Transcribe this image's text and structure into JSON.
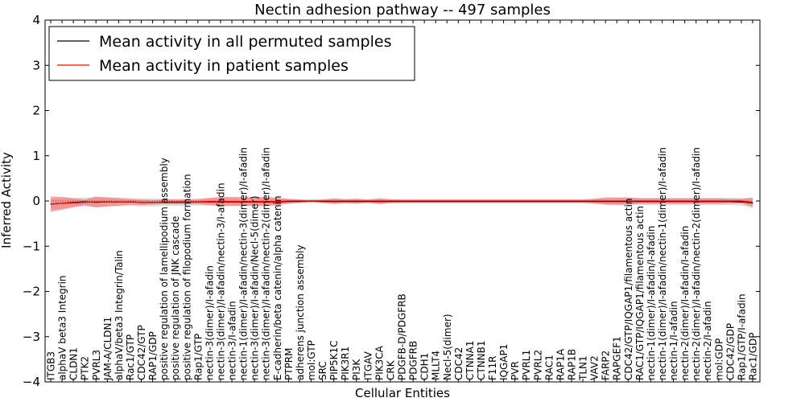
{
  "chart_data": {
    "type": "line",
    "title": "Nectin adhesion pathway -- 497 samples",
    "xlabel": "Cellular Entities",
    "ylabel": "Inferred Activity",
    "ylim": [
      -4,
      4
    ],
    "yticks": [
      "4",
      "3",
      "2",
      "1",
      "0",
      "−1",
      "−2",
      "−3",
      "−4"
    ],
    "ytick_values": [
      4,
      3,
      2,
      1,
      0,
      -1,
      -2,
      -3,
      -4
    ],
    "grid": false,
    "legend_placement": "top-left",
    "categories": [
      "ITGB3",
      "alphaV beta3 Integrin",
      "CLDN1",
      "PTK2",
      "PVRL3",
      "JAM-A/CLDN1",
      "alphaV/beta3 Integrin/Talin",
      "Rac1/GTP",
      "CDC42/GTP",
      "RAP1/GDP",
      "positive regulation of lamellipodium assembly",
      "positive regulation of JNK cascade",
      "positive regulation of filopodium formation",
      "Rap1/GTP",
      "nectin-3(dimer)/I-afadin",
      "nectin-3(dimer)/I-afadin/nectin-3/I-afadin",
      "nectin-3/I-afadin",
      "nectin-1(dimer)/I-afadin/nectin-3(dimer)/I-afadin",
      "nectin-3(dimer)/I-afadin/Necl-5(dimer)",
      "nectin-3(dimer)/I-afadin/nectin-2(dimer)/I-afadin",
      "E-cadherin/beta catenin/alpha catenin",
      "PTPRM",
      "adherens junction assembly",
      "mol:GTP",
      "SRC",
      "PIP5K1C",
      "PIK3R1",
      "PI3K",
      "ITGAV",
      "PIK3CA",
      "CRK",
      "PDGFB-D/PDGFRB",
      "PDGFRB",
      "CDH1",
      "MLLT4",
      "Necl-5(dimer)",
      "CDC42",
      "CTNNA1",
      "CTNNB1",
      "F11R",
      "IQGAP1",
      "PVR",
      "PVRL1",
      "PVRL2",
      "RAC1",
      "RAP1A",
      "RAP1B",
      "TLN1",
      "VAV2",
      "FARP2",
      "RAPGEF1",
      "CDC42/GTP/IQGAP1/filamentous actin",
      "RAC1/GTP/IQGAP1/filamentous actin",
      "nectin-1(dimer)/I-afadin/I-afadin",
      "nectin-1(dimer)/I-afadin/nectin-1(dimer)/I-afadin",
      "nectin-1/I-afadin",
      "nectin-2(dimer)/I-afadin/I-afadin",
      "nectin-2(dimer)/I-afadin/nectin-2(dimer)/I-afadin",
      "nectin-2/I-afadin",
      "mol:GDP",
      "CDC42/GDP",
      "Rap1/GTP/I-afadin",
      "Rac1/GDP"
    ],
    "series": [
      {
        "name": "Mean activity in all permuted samples",
        "color": "#000000",
        "values": [
          -0.07,
          -0.05,
          -0.03,
          -0.02,
          -0.03,
          -0.02,
          -0.02,
          -0.02,
          -0.03,
          -0.03,
          -0.03,
          -0.03,
          -0.03,
          -0.02,
          -0.02,
          -0.02,
          -0.02,
          -0.02,
          -0.02,
          -0.02,
          -0.02,
          -0.01,
          -0.01,
          0.0,
          -0.01,
          -0.01,
          -0.01,
          -0.01,
          -0.01,
          -0.01,
          -0.01,
          -0.01,
          -0.01,
          -0.01,
          -0.01,
          -0.01,
          -0.01,
          -0.01,
          -0.01,
          -0.01,
          -0.01,
          -0.01,
          -0.01,
          -0.01,
          -0.01,
          -0.01,
          -0.01,
          -0.01,
          -0.01,
          -0.01,
          -0.01,
          -0.01,
          -0.01,
          -0.01,
          -0.01,
          -0.01,
          -0.01,
          -0.01,
          -0.01,
          -0.01,
          -0.01,
          -0.02,
          -0.04
        ],
        "band": [
          0.12,
          0.12,
          0.1,
          0.1,
          0.11,
          0.1,
          0.1,
          0.09,
          0.09,
          0.09,
          0.08,
          0.08,
          0.08,
          0.08,
          0.08,
          0.08,
          0.08,
          0.08,
          0.08,
          0.08,
          0.08,
          0.06,
          0.05,
          0.04,
          0.05,
          0.06,
          0.05,
          0.06,
          0.05,
          0.06,
          0.05,
          0.05,
          0.05,
          0.05,
          0.05,
          0.05,
          0.05,
          0.05,
          0.05,
          0.05,
          0.05,
          0.05,
          0.05,
          0.05,
          0.05,
          0.05,
          0.05,
          0.05,
          0.06,
          0.07,
          0.08,
          0.08,
          0.08,
          0.08,
          0.08,
          0.08,
          0.08,
          0.08,
          0.08,
          0.08,
          0.08,
          0.08,
          0.12
        ]
      },
      {
        "name": "Mean activity in patient samples",
        "color": "#ff0000",
        "values": [
          -0.07,
          -0.05,
          -0.04,
          -0.03,
          -0.02,
          -0.02,
          -0.02,
          -0.02,
          -0.03,
          -0.03,
          -0.02,
          -0.02,
          -0.02,
          -0.02,
          -0.01,
          -0.01,
          -0.01,
          -0.01,
          -0.01,
          -0.01,
          -0.01,
          0.0,
          0.0,
          0.0,
          0.0,
          0.0,
          0.0,
          0.0,
          0.0,
          0.0,
          0.0,
          0.0,
          0.0,
          0.0,
          0.0,
          0.0,
          0.0,
          0.0,
          0.0,
          0.0,
          0.0,
          0.0,
          0.0,
          0.0,
          0.0,
          0.0,
          0.0,
          0.0,
          0.0,
          0.0,
          0.0,
          0.0,
          0.0,
          0.0,
          0.0,
          0.0,
          0.0,
          0.0,
          0.0,
          0.0,
          0.0,
          0.0,
          -0.03
        ],
        "band": [
          0.17,
          0.14,
          0.1,
          0.06,
          0.12,
          0.1,
          0.08,
          0.06,
          0.06,
          0.05,
          0.05,
          0.05,
          0.05,
          0.05,
          0.08,
          0.1,
          0.1,
          0.1,
          0.1,
          0.1,
          0.08,
          0.05,
          0.03,
          0.02,
          0.03,
          0.06,
          0.04,
          0.05,
          0.03,
          0.06,
          0.04,
          0.03,
          0.03,
          0.03,
          0.03,
          0.03,
          0.03,
          0.03,
          0.03,
          0.03,
          0.03,
          0.03,
          0.03,
          0.03,
          0.03,
          0.03,
          0.03,
          0.03,
          0.05,
          0.08,
          0.08,
          0.08,
          0.06,
          0.06,
          0.06,
          0.06,
          0.06,
          0.06,
          0.06,
          0.06,
          0.05,
          0.05,
          0.1
        ]
      }
    ]
  }
}
